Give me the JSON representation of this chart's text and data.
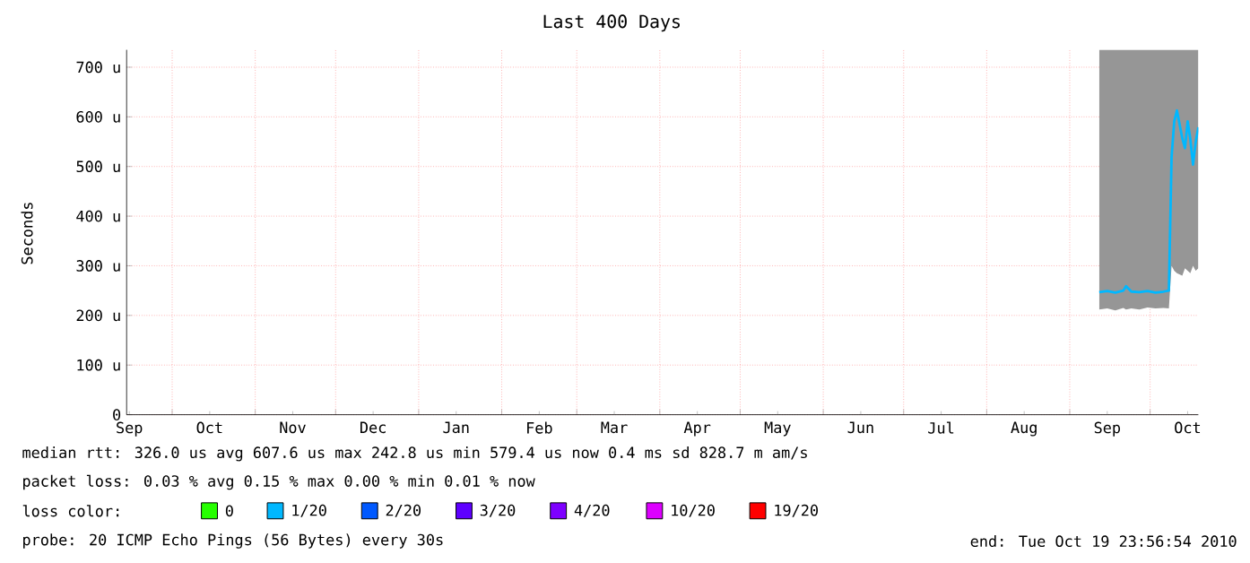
{
  "chart_data": {
    "type": "line",
    "title": "Last 400 Days",
    "ylabel": "Seconds",
    "xlim": [
      "2009-09-14",
      "2010-10-19"
    ],
    "ylim": [
      0,
      735
    ],
    "yticks": [
      0,
      {
        "value": 100,
        "label": "100 u"
      },
      {
        "value": 200,
        "label": "200 u"
      },
      {
        "value": 300,
        "label": "300 u"
      },
      {
        "value": 400,
        "label": "400 u"
      },
      {
        "value": 500,
        "label": "500 u"
      },
      {
        "value": 600,
        "label": "600 u"
      },
      {
        "value": 700,
        "label": "700 u"
      }
    ],
    "xticks": [
      {
        "value": "2009-09-15",
        "label": "Sep"
      },
      {
        "value": "2009-10-01",
        "label": null
      },
      {
        "value": "2009-10-15",
        "label": "Oct"
      },
      {
        "value": "2009-11-01",
        "label": null
      },
      {
        "value": "2009-11-15",
        "label": "Nov"
      },
      {
        "value": "2009-12-01",
        "label": null
      },
      {
        "value": "2009-12-15",
        "label": "Dec"
      },
      {
        "value": "2010-01-01",
        "label": null
      },
      {
        "value": "2010-01-15",
        "label": "Jan"
      },
      {
        "value": "2010-02-01",
        "label": null
      },
      {
        "value": "2010-02-15",
        "label": "Feb"
      },
      {
        "value": "2010-03-01",
        "label": null
      },
      {
        "value": "2010-03-15",
        "label": "Mar"
      },
      {
        "value": "2010-04-01",
        "label": null
      },
      {
        "value": "2010-04-15",
        "label": "Apr"
      },
      {
        "value": "2010-05-01",
        "label": null
      },
      {
        "value": "2010-05-15",
        "label": "May"
      },
      {
        "value": "2010-06-01",
        "label": null
      },
      {
        "value": "2010-06-15",
        "label": "Jun"
      },
      {
        "value": "2010-07-01",
        "label": null
      },
      {
        "value": "2010-07-15",
        "label": "Jul"
      },
      {
        "value": "2010-08-01",
        "label": null
      },
      {
        "value": "2010-08-15",
        "label": "Aug"
      },
      {
        "value": "2010-09-01",
        "label": null
      },
      {
        "value": "2010-09-15",
        "label": "Sep"
      },
      {
        "value": "2010-10-01",
        "label": null
      },
      {
        "value": "2010-10-15",
        "label": "Oct"
      }
    ],
    "grid": true,
    "legend": "bottom",
    "legend_title": "loss color:",
    "marker": "none",
    "series": [
      {
        "name": "0",
        "color": "#26ff00"
      },
      {
        "name": "1/20",
        "color": "#00b8ff",
        "x": [
          "2010-09-12",
          "2010-09-15",
          "2010-09-18",
          "2010-09-21",
          "2010-09-22",
          "2010-09-24",
          "2010-09-27",
          "2010-09-30",
          "2010-10-03",
          "2010-10-06",
          "2010-10-08",
          "2010-10-09",
          "2010-10-10",
          "2010-10-11",
          "2010-10-13",
          "2010-10-14",
          "2010-10-15",
          "2010-10-16",
          "2010-10-17",
          "2010-10-18",
          "2010-10-19"
        ],
        "values": [
          247,
          249,
          246,
          250,
          259,
          248,
          247,
          249,
          246,
          248,
          250,
          519,
          591,
          613,
          557,
          537,
          591,
          555,
          504,
          549,
          579
        ],
        "lower": [
          212,
          214,
          210,
          215,
          212,
          214,
          212,
          216,
          214,
          215,
          214,
          300,
          290,
          285,
          280,
          295,
          290,
          285,
          300,
          290,
          295
        ],
        "upper": [
          735,
          735,
          735,
          735,
          735,
          735,
          735,
          735,
          735,
          735,
          735,
          735,
          735,
          735,
          735,
          735,
          735,
          735,
          735,
          735,
          735
        ]
      },
      {
        "name": "2/20",
        "color": "#0059ff"
      },
      {
        "name": "3/20",
        "color": "#5e00ff"
      },
      {
        "name": "4/20",
        "color": "#7e00ff"
      },
      {
        "name": "10/20",
        "color": "#dd00ff"
      },
      {
        "name": "19/20",
        "color": "#ff0000"
      }
    ],
    "annotations": [
      "median rtt:  326.0 us avg  607.6 us max  242.8 us min  579.4 us now  0.4 ms sd  828.7 m am/s",
      "packet loss: 0.03 % avg  0.15 % max  0.00 % min  0.01 % now",
      "probe:  20 ICMP Echo Pings (56 Bytes) every 30s",
      "end: Tue Oct 19 23:56:54 2010"
    ]
  }
}
